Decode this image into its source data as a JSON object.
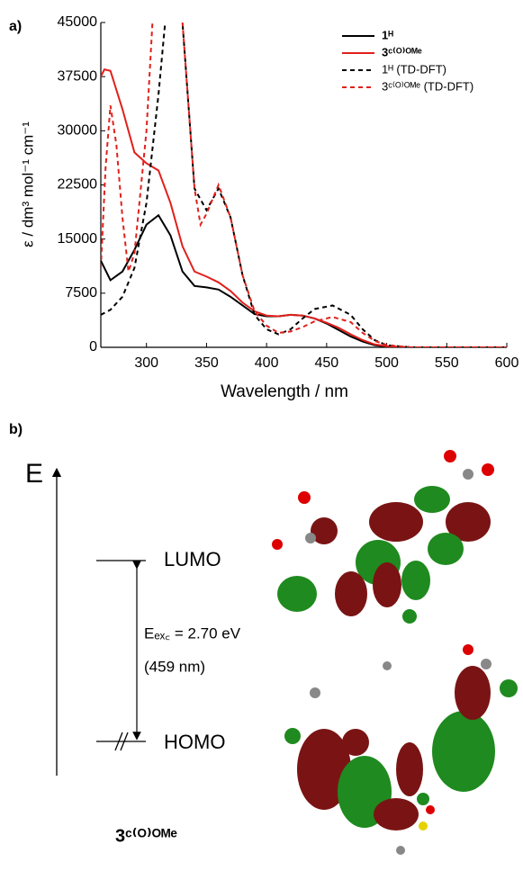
{
  "chart_data": {
    "type": "line",
    "panel_label": "a)",
    "x_label": "Wavelength / nm",
    "y_label": "ε / dm³ mol⁻¹ cm⁻¹",
    "xlim": [
      262,
      600
    ],
    "ylim": [
      0,
      45000
    ],
    "xticks": [
      300,
      350,
      400,
      450,
      500,
      550,
      600
    ],
    "yticks": [
      0,
      7500,
      15000,
      22500,
      30000,
      37500,
      45000
    ],
    "legend": "upper right",
    "grid": false,
    "series": [
      {
        "name": "1ᴴ",
        "color": "#000000",
        "dash": false,
        "x": [
          262,
          270,
          280,
          290,
          300,
          310,
          320,
          330,
          340,
          350,
          360,
          370,
          380,
          390,
          400,
          410,
          420,
          430,
          440,
          450,
          460,
          470,
          480,
          490,
          500,
          520,
          600
        ],
        "values": [
          12000,
          9300,
          10500,
          13500,
          17000,
          18300,
          15500,
          10500,
          8500,
          8300,
          8000,
          7000,
          5800,
          4600,
          4300,
          4300,
          4500,
          4400,
          4000,
          3300,
          2400,
          1500,
          800,
          300,
          100,
          0,
          0
        ]
      },
      {
        "name": "3ᶜ⁽ᴼ⁾ᴼᴹᵉ",
        "color": "#e0201b",
        "dash": false,
        "x": [
          262,
          265,
          270,
          280,
          290,
          300,
          310,
          320,
          330,
          340,
          350,
          360,
          370,
          380,
          390,
          400,
          410,
          420,
          430,
          440,
          450,
          460,
          470,
          480,
          490,
          500,
          520,
          600
        ],
        "values": [
          37500,
          38500,
          38300,
          33000,
          27000,
          25500,
          24500,
          20000,
          14000,
          10500,
          9800,
          9000,
          7800,
          6200,
          5000,
          4400,
          4300,
          4500,
          4400,
          4000,
          3400,
          2700,
          1800,
          1000,
          400,
          150,
          0,
          0
        ]
      },
      {
        "name": "1ᴴ (TD-DFT)",
        "color": "#000000",
        "dash": true,
        "x": [
          262,
          270,
          280,
          290,
          300,
          310,
          315,
          320,
          325,
          330,
          340,
          350,
          360,
          370,
          380,
          390,
          400,
          410,
          420,
          430,
          440,
          455,
          470,
          480,
          490,
          500,
          520,
          600
        ],
        "values": [
          4500,
          5200,
          7000,
          11000,
          20000,
          35000,
          44000,
          52000,
          50000,
          45000,
          22000,
          19000,
          22000,
          18000,
          10000,
          4500,
          2500,
          1800,
          2500,
          4000,
          5300,
          5800,
          4500,
          2500,
          1000,
          300,
          0,
          0
        ]
      },
      {
        "name": "3ᶜ⁽ᴼ⁾ᴼᴹᵉ (TD-DFT)",
        "color": "#e0201b",
        "dash": true,
        "x": [
          262,
          266,
          270,
          275,
          280,
          285,
          290,
          300,
          305,
          310,
          320,
          330,
          340,
          345,
          350,
          360,
          370,
          380,
          390,
          400,
          410,
          420,
          430,
          440,
          455,
          470,
          480,
          490,
          500,
          520,
          600
        ],
        "values": [
          11000,
          25000,
          33500,
          28000,
          18000,
          10500,
          13000,
          30000,
          45000,
          52000,
          55000,
          45000,
          22000,
          17000,
          18500,
          22500,
          18000,
          10000,
          5000,
          3000,
          2000,
          2200,
          2800,
          3600,
          4200,
          3500,
          2000,
          900,
          300,
          0,
          0
        ]
      }
    ]
  },
  "diagram": {
    "panel_label": "b)",
    "axis_label": "E",
    "lumo": "LUMO",
    "homo": "HOMO",
    "transition": "Eₑₓ꜀ = 2.70 eV",
    "wavelength": "(459 nm)",
    "compound": "3ᶜ⁽ᴼ⁾ᴼᴹᵉ"
  }
}
